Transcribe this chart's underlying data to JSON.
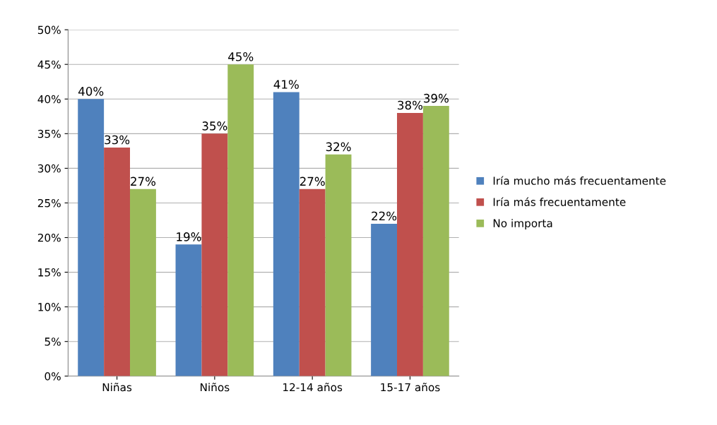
{
  "chart_data": {
    "type": "bar",
    "categories": [
      "Niñas",
      "Niños",
      "12-14 años",
      "15-17 años"
    ],
    "series": [
      {
        "name": "Iría mucho más frecuentamente",
        "color": "#4f81bd",
        "values": [
          40,
          19,
          41,
          22
        ],
        "value_labels": [
          "40%",
          "19%",
          "41%",
          "22%"
        ]
      },
      {
        "name": "Iría más frecuentamente",
        "color": "#c0504d",
        "values": [
          33,
          35,
          27,
          38
        ],
        "value_labels": [
          "33%",
          "35%",
          "27%",
          "38%"
        ]
      },
      {
        "name": "No importa",
        "color": "#9bbb59",
        "values": [
          27,
          45,
          32,
          39
        ],
        "value_labels": [
          "27%",
          "45%",
          "32%",
          "39%"
        ]
      }
    ],
    "ylim": [
      0,
      50
    ],
    "yticks": [
      {
        "value": 0,
        "label": "0%"
      },
      {
        "value": 5,
        "label": "5%"
      },
      {
        "value": 10,
        "label": "10%"
      },
      {
        "value": 15,
        "label": "15%"
      },
      {
        "value": 20,
        "label": "20%"
      },
      {
        "value": 25,
        "label": "25%"
      },
      {
        "value": 30,
        "label": "30%"
      },
      {
        "value": 35,
        "label": "35%"
      },
      {
        "value": 40,
        "label": "40%"
      },
      {
        "value": 45,
        "label": "45%"
      },
      {
        "value": 50,
        "label": "50%"
      }
    ],
    "grid": "y",
    "legend": "right"
  }
}
